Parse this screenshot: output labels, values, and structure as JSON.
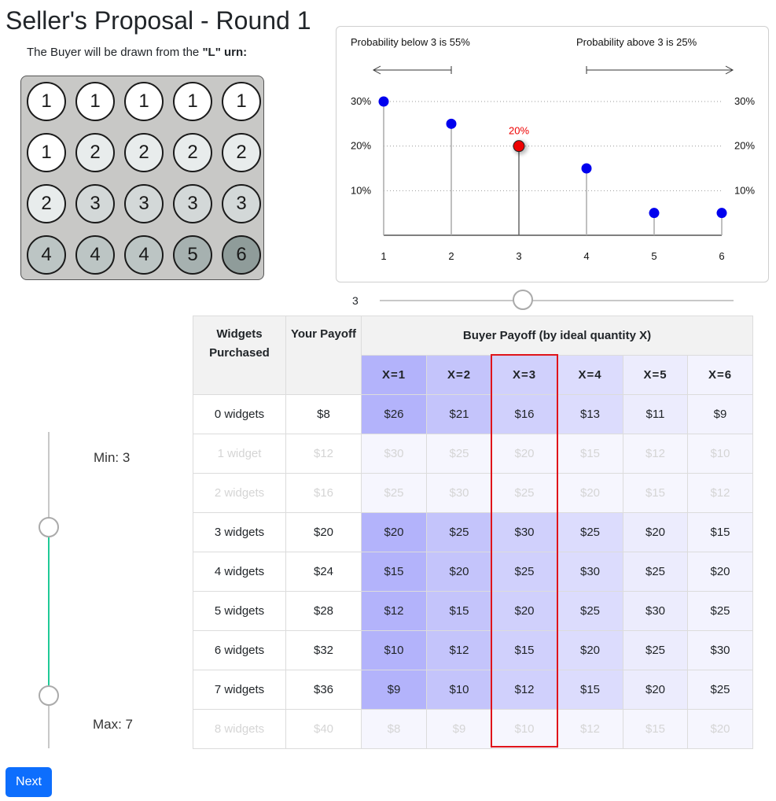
{
  "page": {
    "title": "Seller's Proposal - Round 1"
  },
  "urn": {
    "caption_prefix": "The Buyer will be drawn from the ",
    "urn_name": "\"L\" urn:",
    "balls": [
      1,
      1,
      1,
      1,
      1,
      1,
      2,
      2,
      2,
      2,
      2,
      3,
      3,
      3,
      3,
      4,
      4,
      4,
      5,
      6
    ],
    "ball_colors": {
      "1": "#ffffff",
      "2": "#e8ecec",
      "3": "#d3d8d8",
      "4": "#bcc5c4",
      "5": "#a6b1b0",
      "6": "#8f9c9a"
    }
  },
  "chart_data": {
    "type": "lollipop",
    "categories": [
      "1",
      "2",
      "3",
      "4",
      "5",
      "6"
    ],
    "values": [
      30,
      25,
      20,
      15,
      5,
      5
    ],
    "highlight_index": 2,
    "highlight_label": "20%",
    "ylim": [
      0,
      30
    ],
    "yticks": [
      "10%",
      "20%",
      "30%"
    ],
    "ytick_values": [
      10,
      20,
      30
    ],
    "left_annotation": "Probability below 3 is 55%",
    "right_annotation": "Probability above 3 is 25%",
    "point_color": "#0000ee",
    "highlight_color": "#ee0000"
  },
  "buyer_slider": {
    "value": "3"
  },
  "table": {
    "col_widgets": "Widgets Purchased",
    "col_payoff": "Your Payoff",
    "col_buyer": "Buyer Payoff (by ideal quantity X)",
    "x_headers": [
      "X=1",
      "X=2",
      "X=3",
      "X=4",
      "X=5",
      "X=6"
    ],
    "rows": [
      {
        "label": "0 widgets",
        "payoff": "$8",
        "buyer": [
          "$26",
          "$21",
          "$16",
          "$13",
          "$11",
          "$9"
        ],
        "active": true
      },
      {
        "label": "1 widget",
        "payoff": "$12",
        "buyer": [
          "$30",
          "$25",
          "$20",
          "$15",
          "$12",
          "$10"
        ],
        "active": false
      },
      {
        "label": "2 widgets",
        "payoff": "$16",
        "buyer": [
          "$25",
          "$30",
          "$25",
          "$20",
          "$15",
          "$12"
        ],
        "active": false
      },
      {
        "label": "3 widgets",
        "payoff": "$20",
        "buyer": [
          "$20",
          "$25",
          "$30",
          "$25",
          "$20",
          "$15"
        ],
        "active": true
      },
      {
        "label": "4 widgets",
        "payoff": "$24",
        "buyer": [
          "$15",
          "$20",
          "$25",
          "$30",
          "$25",
          "$20"
        ],
        "active": true
      },
      {
        "label": "5 widgets",
        "payoff": "$28",
        "buyer": [
          "$12",
          "$15",
          "$20",
          "$25",
          "$30",
          "$25"
        ],
        "active": true
      },
      {
        "label": "6 widgets",
        "payoff": "$32",
        "buyer": [
          "$10",
          "$12",
          "$15",
          "$20",
          "$25",
          "$30"
        ],
        "active": true
      },
      {
        "label": "7 widgets",
        "payoff": "$36",
        "buyer": [
          "$9",
          "$10",
          "$12",
          "$15",
          "$20",
          "$25"
        ],
        "active": true
      },
      {
        "label": "8 widgets",
        "payoff": "$40",
        "buyer": [
          "$8",
          "$9",
          "$10",
          "$12",
          "$15",
          "$20"
        ],
        "active": false
      }
    ],
    "col_colors": [
      "#b3b3fb",
      "#c4c4fb",
      "#d0d0fc",
      "#dcdcfd",
      "#ececfd",
      "#f3f3fe"
    ],
    "highlight_column": 2,
    "highlight_color": "#e0141a"
  },
  "range_slider": {
    "min_label": "Min: 3",
    "max_label": "Max: 7",
    "min_value": 3,
    "max_value": 7,
    "range_color": "#20c997"
  },
  "next_button": {
    "label": "Next",
    "color": "#0d6efd"
  }
}
